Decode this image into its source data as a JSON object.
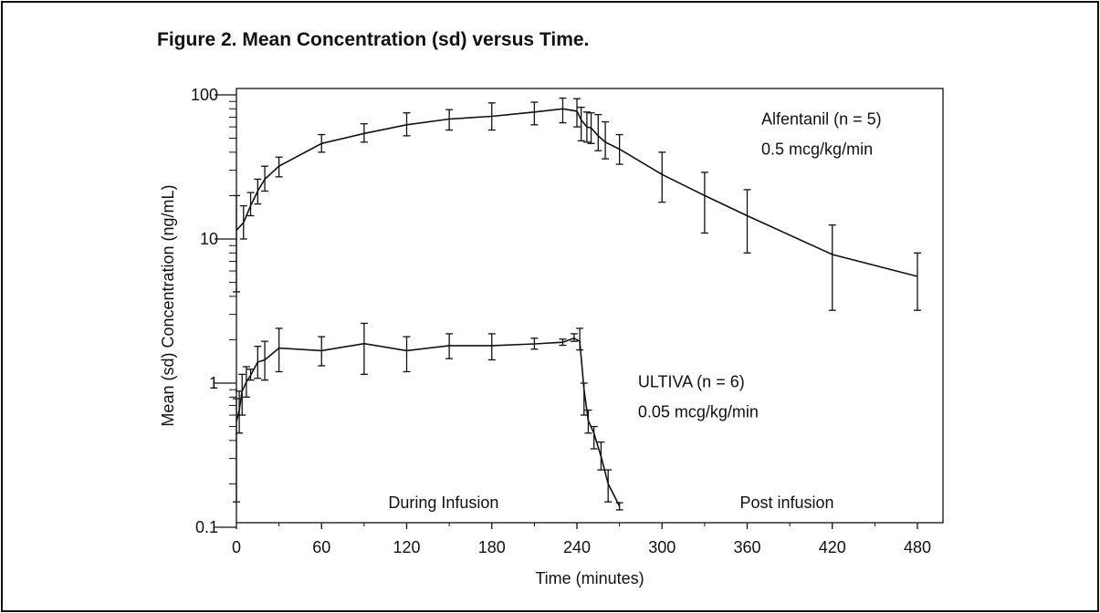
{
  "figure": {
    "title": "Figure 2. Mean Concentration (sd) versus Time."
  },
  "chart_data": {
    "type": "line",
    "xlabel": "Time (minutes)",
    "ylabel": "Mean (sd) Concentration (ng/mL)",
    "xlim": [
      0,
      500
    ],
    "ylim": [
      0.1,
      100
    ],
    "yscale": "log",
    "x_ticks": [
      0,
      60,
      120,
      180,
      240,
      300,
      360,
      420,
      480
    ],
    "y_ticks": [
      0.1,
      1,
      10,
      100
    ],
    "y_tick_labels": [
      "0.1",
      "1",
      "10",
      "100"
    ],
    "grid": false,
    "legend": "none",
    "annotations": [
      {
        "text": "Alfentanil (n = 5)",
        "x": 370,
        "y": 68
      },
      {
        "text": "0.5 mcg/kg/min",
        "x": 370,
        "y": 42
      },
      {
        "text": "ULTIVA (n = 6)",
        "x": 283,
        "y": 1.02
      },
      {
        "text": "0.05 mcg/kg/min",
        "x": 283,
        "y": 0.63
      },
      {
        "text": "During Infusion",
        "x": 146,
        "y": 0.148
      },
      {
        "text": "Post infusion",
        "x": 388,
        "y": 0.148
      }
    ],
    "series": [
      {
        "name": "Alfentanil (n = 5)",
        "points": [
          {
            "x": 0,
            "y": 11.5,
            "lo": 4.3,
            "hi": 20
          },
          {
            "x": 5,
            "y": 13,
            "lo": 10,
            "hi": 17
          },
          {
            "x": 10,
            "y": 17,
            "lo": 14.5,
            "hi": 21
          },
          {
            "x": 15,
            "y": 21.5,
            "lo": 17.5,
            "hi": 26
          },
          {
            "x": 20,
            "y": 26,
            "lo": 21.5,
            "hi": 32
          },
          {
            "x": 30,
            "y": 32,
            "lo": 27,
            "hi": 37
          },
          {
            "x": 60,
            "y": 46,
            "lo": 40,
            "hi": 53
          },
          {
            "x": 90,
            "y": 54,
            "lo": 47,
            "hi": 63
          },
          {
            "x": 120,
            "y": 62,
            "lo": 52,
            "hi": 75
          },
          {
            "x": 150,
            "y": 68,
            "lo": 57,
            "hi": 79
          },
          {
            "x": 180,
            "y": 71,
            "lo": 57,
            "hi": 88
          },
          {
            "x": 210,
            "y": 76,
            "lo": 62,
            "hi": 89
          },
          {
            "x": 230,
            "y": 80,
            "lo": 64,
            "hi": 95
          },
          {
            "x": 240,
            "y": 77,
            "lo": 60,
            "hi": 94
          },
          {
            "x": 243,
            "y": 67,
            "lo": 48,
            "hi": 82
          },
          {
            "x": 247,
            "y": 60,
            "lo": 47,
            "hi": 76
          },
          {
            "x": 250,
            "y": 59,
            "lo": 46,
            "hi": 75
          },
          {
            "x": 255,
            "y": 52,
            "lo": 41,
            "hi": 73
          },
          {
            "x": 260,
            "y": 47,
            "lo": 36,
            "hi": 65
          },
          {
            "x": 270,
            "y": 42,
            "lo": 33,
            "hi": 53
          },
          {
            "x": 300,
            "y": 28,
            "lo": 18,
            "hi": 40
          },
          {
            "x": 330,
            "y": 20,
            "lo": 11,
            "hi": 29
          },
          {
            "x": 360,
            "y": 14.5,
            "lo": 8,
            "hi": 22
          },
          {
            "x": 420,
            "y": 7.8,
            "lo": 3.2,
            "hi": 12.5
          },
          {
            "x": 480,
            "y": 5.5,
            "lo": 3.2,
            "hi": 8
          }
        ]
      },
      {
        "name": "ULTIVA (n = 6)",
        "points": [
          {
            "x": 0,
            "y": 0.54,
            "lo": 0.15,
            "hi": 0.78
          },
          {
            "x": 2,
            "y": 0.65,
            "lo": 0.45,
            "hi": 0.88
          },
          {
            "x": 4,
            "y": 0.88,
            "lo": 0.6,
            "hi": 1.15
          },
          {
            "x": 7,
            "y": 1.02,
            "lo": 0.8,
            "hi": 1.3
          },
          {
            "x": 10,
            "y": 1.13,
            "lo": 1.05,
            "hi": 1.25
          },
          {
            "x": 15,
            "y": 1.4,
            "lo": 1.08,
            "hi": 1.8
          },
          {
            "x": 20,
            "y": 1.45,
            "lo": 1.05,
            "hi": 1.95
          },
          {
            "x": 30,
            "y": 1.75,
            "lo": 1.2,
            "hi": 2.4
          },
          {
            "x": 60,
            "y": 1.68,
            "lo": 1.32,
            "hi": 2.1
          },
          {
            "x": 90,
            "y": 1.88,
            "lo": 1.15,
            "hi": 2.6
          },
          {
            "x": 120,
            "y": 1.68,
            "lo": 1.2,
            "hi": 2.1
          },
          {
            "x": 150,
            "y": 1.82,
            "lo": 1.48,
            "hi": 2.2
          },
          {
            "x": 180,
            "y": 1.82,
            "lo": 1.45,
            "hi": 2.2
          },
          {
            "x": 210,
            "y": 1.87,
            "lo": 1.72,
            "hi": 2.05
          },
          {
            "x": 230,
            "y": 1.92,
            "lo": 1.83,
            "hi": 2.02
          },
          {
            "x": 238,
            "y": 2.05,
            "lo": 1.95,
            "hi": 2.2
          },
          {
            "x": 242,
            "y": 1.95,
            "lo": 1.7,
            "hi": 2.4
          },
          {
            "x": 245,
            "y": 0.9,
            "lo": 0.6,
            "hi": 1.0
          },
          {
            "x": 248,
            "y": 0.55,
            "lo": 0.45,
            "hi": 0.65
          },
          {
            "x": 252,
            "y": 0.45,
            "lo": 0.35,
            "hi": 0.5
          },
          {
            "x": 257,
            "y": 0.31,
            "lo": 0.25,
            "hi": 0.39
          },
          {
            "x": 262,
            "y": 0.2,
            "lo": 0.15,
            "hi": 0.25
          },
          {
            "x": 270,
            "y": 0.14,
            "lo": 0.132,
            "hi": 0.148
          }
        ]
      }
    ]
  }
}
